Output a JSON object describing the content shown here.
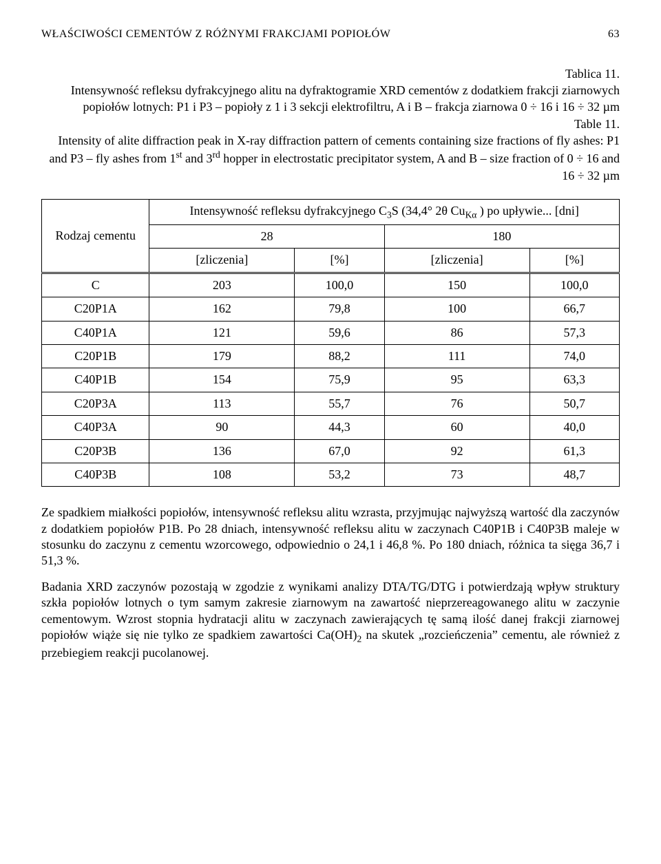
{
  "header": {
    "title": "WŁAŚCIWOŚCI CEMENTÓW Z RÓŻNYMI FRAKCJAMI POPIOŁÓW",
    "page_number": "63"
  },
  "caption": {
    "table_label_pl": "Tablica 11.",
    "title_pl": "Intensywność refleksu dyfrakcyjnego alitu na dyfraktogramie XRD cementów z dodatkiem frakcji ziarnowych popiołów lotnych: P1 i P3 – popioły z 1 i 3 sekcji elektrofiltru, A i B – frakcja ziarnowa 0 ÷ 16 i 16 ÷ 32 µm",
    "table_label_en": "Table 11.",
    "title_en_part1": "Intensity of alite diffraction peak in X-ray diffraction pattern of cements containing size fractions of fly ashes: P1 and P3 – fly ashes from 1",
    "sup1": "st",
    "title_en_mid": " and 3",
    "sup2": "rd",
    "title_en_part2": " hopper in electrostatic precipitator system, A and B – size fraction of 0 ÷ 16 and 16 ÷ 32 µm"
  },
  "table": {
    "row_head": "Rodzaj cementu",
    "super_head_a": "Intensywność refleksu dyfrakcyjnego C",
    "super_head_sub": "3",
    "super_head_b": "S (34,4° 2θ Cu",
    "super_head_subk": "Kα",
    "super_head_c": " ) po upływie... [dni]",
    "col_28": "28",
    "col_180": "180",
    "unit_counts": "[zliczenia]",
    "unit_pct": "[%]",
    "rows": [
      {
        "name": "C",
        "c28": "203",
        "p28": "100,0",
        "c180": "150",
        "p180": "100,0"
      },
      {
        "name": "C20P1A",
        "c28": "162",
        "p28": "79,8",
        "c180": "100",
        "p180": "66,7"
      },
      {
        "name": "C40P1A",
        "c28": "121",
        "p28": "59,6",
        "c180": "86",
        "p180": "57,3"
      },
      {
        "name": "C20P1B",
        "c28": "179",
        "p28": "88,2",
        "c180": "111",
        "p180": "74,0"
      },
      {
        "name": "C40P1B",
        "c28": "154",
        "p28": "75,9",
        "c180": "95",
        "p180": "63,3"
      },
      {
        "name": "C20P3A",
        "c28": "113",
        "p28": "55,7",
        "c180": "76",
        "p180": "50,7"
      },
      {
        "name": "C40P3A",
        "c28": "90",
        "p28": "44,3",
        "c180": "60",
        "p180": "40,0"
      },
      {
        "name": "C20P3B",
        "c28": "136",
        "p28": "67,0",
        "c180": "92",
        "p180": "61,3"
      },
      {
        "name": "C40P3B",
        "c28": "108",
        "p28": "53,2",
        "c180": "73",
        "p180": "48,7"
      }
    ]
  },
  "paragraphs": {
    "p1": "Ze spadkiem miałkości popiołów, intensywność refleksu alitu wzrasta, przyjmując najwyższą wartość dla zaczynów z dodatkiem popiołów P1B. Po 28 dniach, intensywność refleksu alitu w zaczynach C40P1B i C40P3B maleje w stosunku do zaczynu z cementu wzorcowego, odpowiednio o 24,1 i 46,8 %. Po 180 dniach, różnica ta sięga 36,7 i 51,3 %.",
    "p2a": "Badania XRD zaczynów pozostają w zgodzie z wynikami analizy DTA/TG/DTG i potwierdzają wpływ struktury szkła popiołów lotnych o tym samym zakresie ziarnowym na zawartość nieprzereagowanego alitu w zaczynie cementowym. Wzrost stopnia hydratacji alitu w zaczynach zawierających tę samą ilość danej frakcji ziarnowej popiołów wiąże się nie tylko ze spadkiem zawartości Ca(OH)",
    "p2sub": "2",
    "p2b": " na skutek „rozcieńczenia” cementu, ale również z przebiegiem reakcji pucolanowej."
  }
}
